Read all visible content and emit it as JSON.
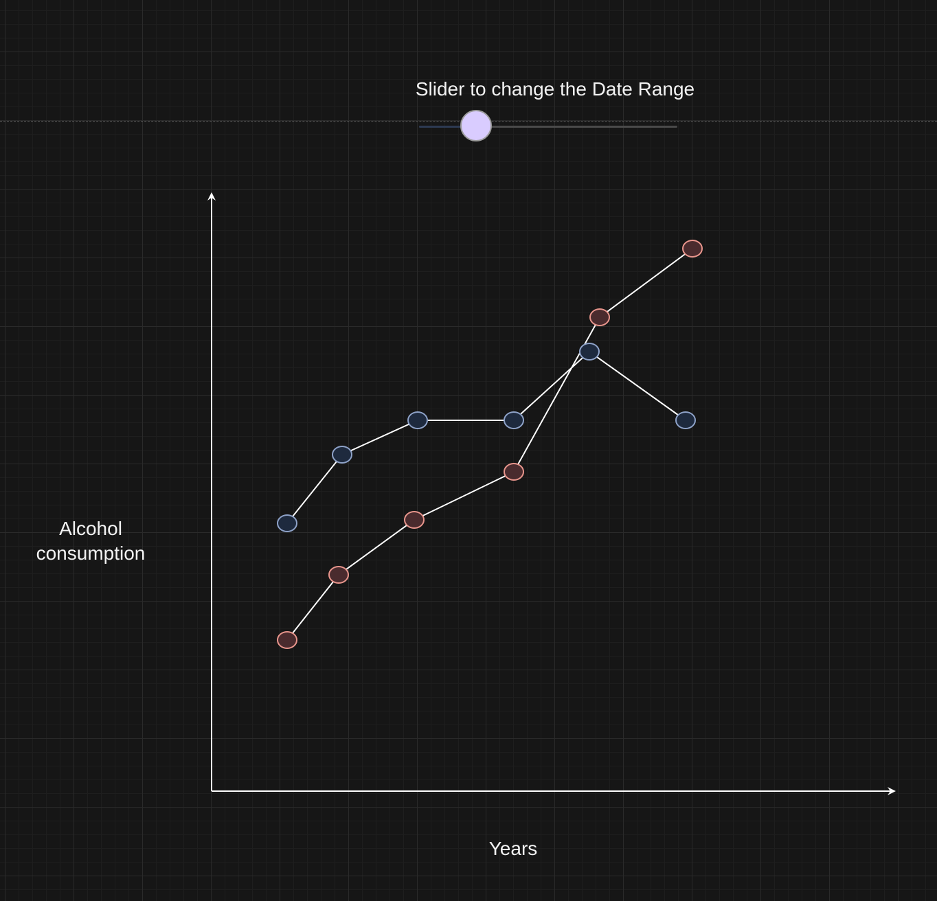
{
  "slider": {
    "label": "Slider to change the Date Range",
    "value": 0.22
  },
  "chart_data": {
    "type": "line",
    "title": "",
    "xlabel": "Years",
    "ylabel": "Alcohol consumption",
    "xlim": [
      0,
      10
    ],
    "ylim": [
      0,
      9
    ],
    "grid": true,
    "series": [
      {
        "color": "#1e2a3e",
        "stroke": "#8ea2c8",
        "points": [
          [
            1.1,
            3.9
          ],
          [
            1.9,
            4.9
          ],
          [
            3.0,
            5.4
          ],
          [
            4.4,
            5.4
          ],
          [
            5.5,
            6.4
          ],
          [
            6.9,
            5.4
          ]
        ]
      },
      {
        "color": "#4a2b2e",
        "stroke": "#e8958c",
        "points": [
          [
            1.1,
            2.2
          ],
          [
            1.85,
            3.15
          ],
          [
            2.95,
            3.95
          ],
          [
            4.4,
            4.65
          ],
          [
            5.65,
            6.9
          ],
          [
            7.0,
            7.9
          ]
        ]
      }
    ]
  }
}
